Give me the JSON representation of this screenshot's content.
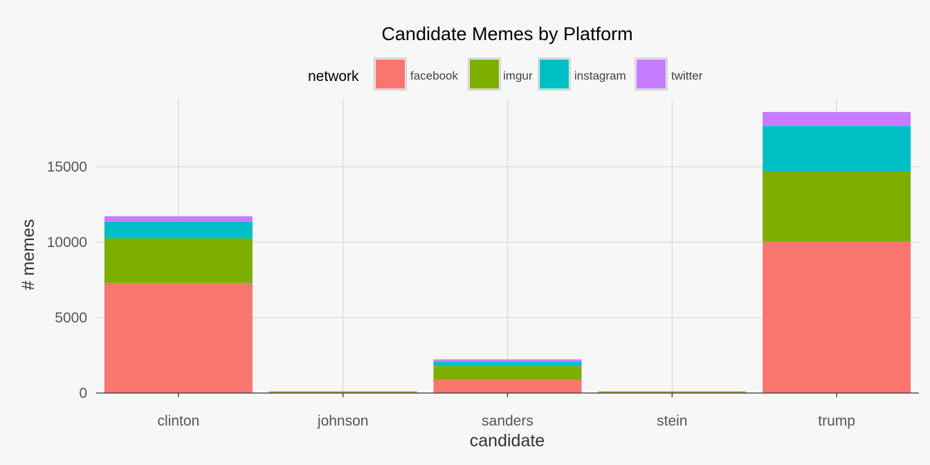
{
  "chart_data": {
    "type": "bar",
    "stacked": true,
    "title": "Candidate Memes by Platform",
    "xlabel": "candidate",
    "ylabel": "# memes",
    "ylim": [
      0,
      19500
    ],
    "yticks": [
      0,
      5000,
      10000,
      15000
    ],
    "grid": true,
    "legend": {
      "title": "network",
      "position": "top"
    },
    "categories": [
      "clinton",
      "johnson",
      "sanders",
      "stein",
      "trump"
    ],
    "series": [
      {
        "name": "facebook",
        "color": "#F8766D",
        "values": [
          7300,
          60,
          880,
          60,
          10050
        ]
      },
      {
        "name": "imgur",
        "color": "#7CAE00",
        "values": [
          2950,
          40,
          900,
          40,
          4650
        ]
      },
      {
        "name": "instagram",
        "color": "#00BFC4",
        "values": [
          1100,
          10,
          300,
          10,
          3000
        ]
      },
      {
        "name": "twitter",
        "color": "#C77CFF",
        "values": [
          370,
          5,
          150,
          5,
          930
        ]
      }
    ]
  }
}
